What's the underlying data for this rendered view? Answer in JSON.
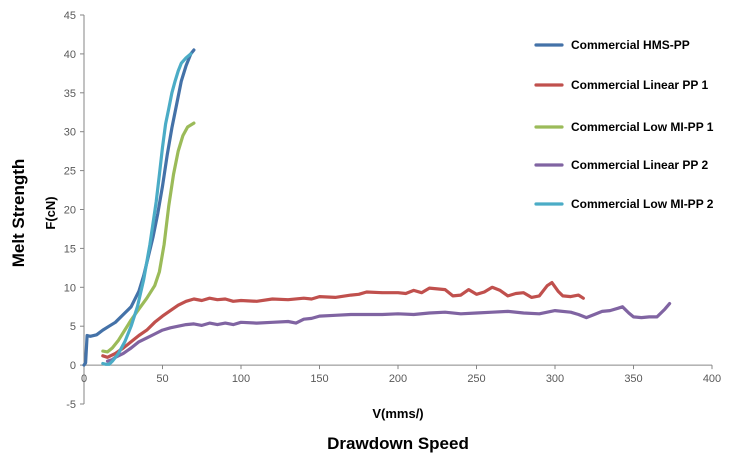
{
  "chart_data": {
    "type": "line",
    "title": "",
    "xlabel": "V(mms/)",
    "xlabel_outer": "Drawdown Speed",
    "ylabel": "F(cN)",
    "ylabel_outer": "Melt Strength",
    "xlim": [
      0,
      400
    ],
    "ylim": [
      -5,
      45
    ],
    "xticks": [
      0,
      50,
      100,
      150,
      200,
      250,
      300,
      350,
      400
    ],
    "yticks": [
      -5,
      0,
      5,
      10,
      15,
      20,
      25,
      30,
      35,
      40,
      45
    ],
    "grid": false,
    "legend_position": "right",
    "series": [
      {
        "name": "Commercial HMS-PP",
        "color": "#4472A8",
        "x": [
          0,
          1,
          2,
          4,
          8,
          12,
          16,
          20,
          25,
          30,
          35,
          38,
          41,
          44,
          47,
          50,
          53,
          56,
          59,
          62,
          65,
          68,
          70
        ],
        "y": [
          0,
          0.3,
          3.8,
          3.7,
          3.9,
          4.5,
          5,
          5.5,
          6.5,
          7.5,
          9.5,
          11.5,
          14,
          16.5,
          19.5,
          23,
          27,
          30.5,
          33.5,
          36.5,
          38.5,
          40,
          40.5
        ]
      },
      {
        "name": "Commercial Linear PP 1",
        "color": "#C0504D",
        "x": [
          12,
          15,
          20,
          25,
          30,
          35,
          40,
          45,
          50,
          55,
          60,
          65,
          70,
          75,
          80,
          85,
          90,
          95,
          100,
          110,
          120,
          130,
          140,
          145,
          150,
          160,
          170,
          175,
          180,
          190,
          200,
          205,
          210,
          215,
          220,
          225,
          230,
          235,
          240,
          245,
          250,
          255,
          260,
          265,
          270,
          275,
          280,
          285,
          290,
          295,
          298,
          302,
          305,
          310,
          315,
          318
        ],
        "y": [
          1.2,
          1,
          1.5,
          2.2,
          3,
          3.8,
          4.5,
          5.5,
          6.3,
          7,
          7.7,
          8.2,
          8.5,
          8.3,
          8.6,
          8.4,
          8.5,
          8.2,
          8.3,
          8.2,
          8.5,
          8.4,
          8.6,
          8.5,
          8.8,
          8.7,
          9.0,
          9.1,
          9.4,
          9.3,
          9.3,
          9.2,
          9.6,
          9.3,
          9.9,
          9.8,
          9.7,
          8.9,
          9.0,
          9.7,
          9.1,
          9.4,
          10.0,
          9.6,
          8.9,
          9.2,
          9.3,
          8.7,
          8.9,
          10.2,
          10.6,
          9.5,
          8.9,
          8.8,
          9.0,
          8.6
        ]
      },
      {
        "name": "Commercial Low MI-PP 1",
        "color": "#9BBB59",
        "x": [
          12,
          15,
          18,
          22,
          26,
          30,
          35,
          40,
          45,
          48,
          51,
          54,
          57,
          60,
          63,
          66,
          70
        ],
        "y": [
          1.8,
          1.7,
          2.2,
          3.2,
          4.5,
          5.8,
          7.2,
          8.6,
          10.2,
          12,
          15.5,
          20.5,
          24.5,
          27.5,
          29.5,
          30.6,
          31.1
        ]
      },
      {
        "name": "Commercial Linear PP 2",
        "color": "#8064A2",
        "x": [
          15,
          18,
          20,
          25,
          30,
          35,
          40,
          45,
          50,
          55,
          60,
          65,
          70,
          75,
          80,
          85,
          90,
          95,
          100,
          110,
          120,
          130,
          135,
          140,
          145,
          150,
          160,
          170,
          180,
          190,
          200,
          210,
          220,
          230,
          240,
          250,
          260,
          270,
          280,
          290,
          300,
          310,
          315,
          320,
          325,
          330,
          335,
          340,
          343,
          347,
          350,
          355,
          360,
          365,
          370,
          373
        ],
        "y": [
          0.5,
          0.7,
          1,
          1.5,
          2.2,
          3,
          3.5,
          4,
          4.5,
          4.8,
          5.0,
          5.2,
          5.3,
          5.1,
          5.4,
          5.2,
          5.4,
          5.2,
          5.5,
          5.4,
          5.5,
          5.6,
          5.4,
          5.9,
          6.0,
          6.3,
          6.4,
          6.5,
          6.5,
          6.5,
          6.6,
          6.5,
          6.7,
          6.8,
          6.6,
          6.7,
          6.8,
          6.9,
          6.7,
          6.6,
          7.0,
          6.8,
          6.5,
          6.1,
          6.5,
          6.9,
          7.0,
          7.3,
          7.5,
          6.7,
          6.2,
          6.1,
          6.2,
          6.2,
          7.2,
          7.9
        ]
      },
      {
        "name": "Commercial Low MI-PP 2",
        "color": "#4BACC6",
        "x": [
          12,
          14,
          16,
          18,
          22,
          26,
          30,
          34,
          38,
          42,
          46,
          48,
          50,
          52,
          54,
          56,
          58,
          60,
          62,
          65,
          68
        ],
        "y": [
          0.2,
          0.1,
          0.1,
          0.5,
          1.5,
          3,
          5,
          7.5,
          11,
          15.5,
          21,
          24.5,
          28,
          31,
          33,
          35,
          36.5,
          37.8,
          38.8,
          39.5,
          40
        ]
      }
    ]
  }
}
